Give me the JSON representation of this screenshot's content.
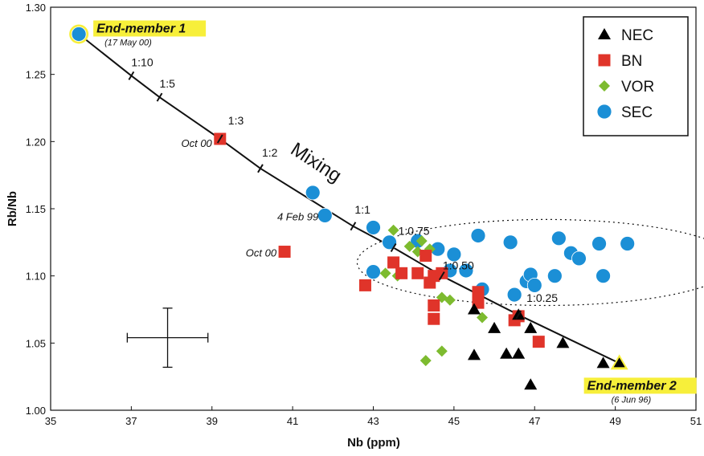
{
  "chart_data": {
    "type": "scatter",
    "xlabel": "Nb (ppm)",
    "ylabel": "Rb/Nb",
    "xlim": [
      35,
      51
    ],
    "ylim": [
      1.0,
      1.3
    ],
    "xticks": [
      "35",
      "37",
      "39",
      "41",
      "43",
      "45",
      "47",
      "49",
      "51"
    ],
    "yticks": [
      "1.00",
      "1.05",
      "1.10",
      "1.15",
      "1.20",
      "1.25",
      "1.30"
    ],
    "legend_position": "top-right",
    "grid": false,
    "series": [
      {
        "name": "NEC",
        "marker": "triangle",
        "color": "#000000",
        "points": [
          [
            45.5,
            1.075
          ],
          [
            46.0,
            1.061
          ],
          [
            46.3,
            1.042
          ],
          [
            46.6,
            1.042
          ],
          [
            46.9,
            1.061
          ],
          [
            47.7,
            1.05
          ],
          [
            46.9,
            1.019
          ],
          [
            45.5,
            1.041
          ],
          [
            48.7,
            1.035
          ],
          [
            49.1,
            1.035
          ],
          [
            46.6,
            1.071
          ]
        ]
      },
      {
        "name": "BN",
        "marker": "square",
        "color": "#e0342a",
        "points": [
          [
            39.2,
            1.202
          ],
          [
            40.8,
            1.118
          ],
          [
            42.8,
            1.093
          ],
          [
            43.5,
            1.11
          ],
          [
            43.7,
            1.102
          ],
          [
            44.1,
            1.102
          ],
          [
            44.3,
            1.115
          ],
          [
            44.4,
            1.095
          ],
          [
            44.5,
            1.078
          ],
          [
            44.5,
            1.068
          ],
          [
            44.5,
            1.1
          ],
          [
            44.7,
            1.102
          ],
          [
            45.6,
            1.08
          ],
          [
            45.6,
            1.088
          ],
          [
            46.5,
            1.067
          ],
          [
            46.6,
            1.07
          ],
          [
            47.1,
            1.051
          ]
        ]
      },
      {
        "name": "VOR",
        "marker": "diamond",
        "color": "#7dbb2f",
        "points": [
          [
            43.3,
            1.102
          ],
          [
            43.5,
            1.134
          ],
          [
            43.6,
            1.1
          ],
          [
            43.9,
            1.122
          ],
          [
            44.1,
            1.118
          ],
          [
            44.2,
            1.126
          ],
          [
            44.4,
            1.12
          ],
          [
            44.7,
            1.084
          ],
          [
            44.9,
            1.082
          ],
          [
            45.7,
            1.069
          ],
          [
            44.7,
            1.044
          ],
          [
            44.3,
            1.037
          ]
        ]
      },
      {
        "name": "SEC",
        "marker": "circle",
        "color": "#1b8fd6",
        "points": [
          [
            35.7,
            1.28
          ],
          [
            41.5,
            1.162
          ],
          [
            41.8,
            1.145
          ],
          [
            43.0,
            1.136
          ],
          [
            43.4,
            1.125
          ],
          [
            43.0,
            1.103
          ],
          [
            44.1,
            1.126
          ],
          [
            44.6,
            1.12
          ],
          [
            45.0,
            1.116
          ],
          [
            44.9,
            1.104
          ],
          [
            45.3,
            1.104
          ],
          [
            45.6,
            1.13
          ],
          [
            45.7,
            1.09
          ],
          [
            46.4,
            1.125
          ],
          [
            46.5,
            1.086
          ],
          [
            46.8,
            1.096
          ],
          [
            46.9,
            1.101
          ],
          [
            47.0,
            1.093
          ],
          [
            47.5,
            1.1
          ],
          [
            47.6,
            1.128
          ],
          [
            47.9,
            1.117
          ],
          [
            48.1,
            1.113
          ],
          [
            48.6,
            1.124
          ],
          [
            48.7,
            1.1
          ],
          [
            49.3,
            1.124
          ]
        ]
      }
    ],
    "mixing_curve": {
      "label": "Mixing",
      "points": [
        [
          35.7,
          1.28
        ],
        [
          37.0,
          1.249
        ],
        [
          37.7,
          1.233
        ],
        [
          39.2,
          1.202
        ],
        [
          40.2,
          1.18
        ],
        [
          42.5,
          1.137
        ],
        [
          43.5,
          1.121
        ],
        [
          44.7,
          1.1
        ],
        [
          46.6,
          1.071
        ],
        [
          49.1,
          1.035
        ]
      ],
      "ticks": [
        {
          "label": "1:10",
          "x": 37.0,
          "y": 1.249
        },
        {
          "label": "1:5",
          "x": 37.7,
          "y": 1.233
        },
        {
          "label": "1:3",
          "x": 39.2,
          "y": 1.202
        },
        {
          "label": "1:2",
          "x": 40.2,
          "y": 1.18
        },
        {
          "label": "1:1",
          "x": 42.5,
          "y": 1.137
        },
        {
          "label": "1:0.75",
          "x": 43.5,
          "y": 1.121
        },
        {
          "label": "1:0.50",
          "x": 44.7,
          "y": 1.1
        },
        {
          "label": "1:0.25",
          "x": 46.6,
          "y": 1.071
        }
      ]
    },
    "end_members": [
      {
        "label": "End-member 1",
        "date": "(17 May 00)",
        "x": 35.7,
        "y": 1.28
      },
      {
        "label": "End-member 2",
        "date": "(6 Jun 96)",
        "x": 49.1,
        "y": 1.035
      }
    ],
    "annotations": [
      {
        "text": "Oct 00",
        "x": 39.2,
        "y": 1.202
      },
      {
        "text": "4 Feb 99",
        "x": 41.8,
        "y": 1.145
      },
      {
        "text": "Oct 00",
        "x": 40.8,
        "y": 1.118
      }
    ],
    "error_bar": {
      "x": 37.9,
      "y": 1.054,
      "x_err": 1.0,
      "y_err": 0.022
    },
    "ellipse": {
      "cx": 47.3,
      "cy": 1.11,
      "rx": 4.7,
      "ry": 0.032,
      "style": "dotted"
    }
  }
}
